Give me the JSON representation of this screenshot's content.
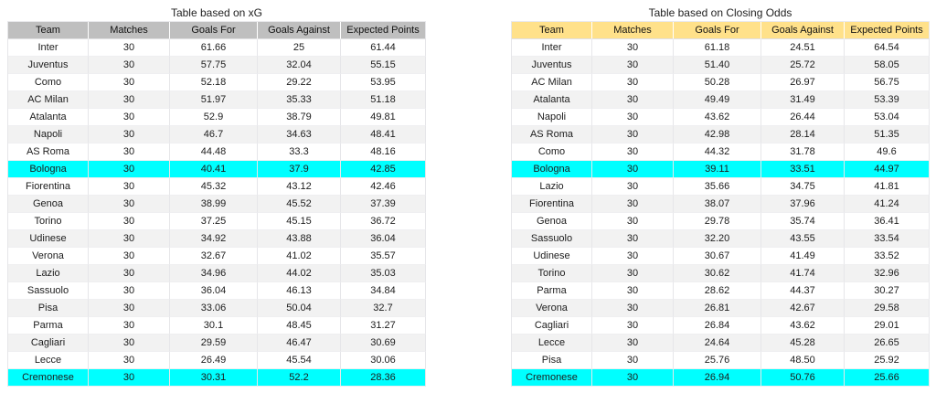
{
  "page": {
    "background": "#ffffff",
    "stripe_color": "#f2f2f2",
    "highlight_color": "#00ffff"
  },
  "tables": [
    {
      "id": "xg",
      "title": "Table based on xG",
      "header_bg": "#bfbfbf",
      "columns": [
        "Team",
        "Matches",
        "Goals For",
        "Goals Against",
        "Expected Points"
      ],
      "highlighted_teams": [
        "Bologna",
        "Cremonese"
      ],
      "rows": [
        [
          "Inter",
          "30",
          "61.66",
          "25",
          "61.44"
        ],
        [
          "Juventus",
          "30",
          "57.75",
          "32.04",
          "55.15"
        ],
        [
          "Como",
          "30",
          "52.18",
          "29.22",
          "53.95"
        ],
        [
          "AC Milan",
          "30",
          "51.97",
          "35.33",
          "51.18"
        ],
        [
          "Atalanta",
          "30",
          "52.9",
          "38.79",
          "49.81"
        ],
        [
          "Napoli",
          "30",
          "46.7",
          "34.63",
          "48.41"
        ],
        [
          "AS Roma",
          "30",
          "44.48",
          "33.3",
          "48.16"
        ],
        [
          "Bologna",
          "30",
          "40.41",
          "37.9",
          "42.85"
        ],
        [
          "Fiorentina",
          "30",
          "45.32",
          "43.12",
          "42.46"
        ],
        [
          "Genoa",
          "30",
          "38.99",
          "45.52",
          "37.39"
        ],
        [
          "Torino",
          "30",
          "37.25",
          "45.15",
          "36.72"
        ],
        [
          "Udinese",
          "30",
          "34.92",
          "43.88",
          "36.04"
        ],
        [
          "Verona",
          "30",
          "32.67",
          "41.02",
          "35.57"
        ],
        [
          "Lazio",
          "30",
          "34.96",
          "44.02",
          "35.03"
        ],
        [
          "Sassuolo",
          "30",
          "36.04",
          "46.13",
          "34.84"
        ],
        [
          "Pisa",
          "30",
          "33.06",
          "50.04",
          "32.7"
        ],
        [
          "Parma",
          "30",
          "30.1",
          "48.45",
          "31.27"
        ],
        [
          "Cagliari",
          "30",
          "29.59",
          "46.47",
          "30.69"
        ],
        [
          "Lecce",
          "30",
          "26.49",
          "45.54",
          "30.06"
        ],
        [
          "Cremonese",
          "30",
          "30.31",
          "52.2",
          "28.36"
        ]
      ]
    },
    {
      "id": "closing-odds",
      "title": "Table based on Closing Odds",
      "header_bg": "#ffe18a",
      "columns": [
        "Team",
        "Matches",
        "Goals For",
        "Goals Against",
        "Expected Points"
      ],
      "highlighted_teams": [
        "Bologna",
        "Cremonese"
      ],
      "rows": [
        [
          "Inter",
          "30",
          "61.18",
          "24.51",
          "64.54"
        ],
        [
          "Juventus",
          "30",
          "51.40",
          "25.72",
          "58.05"
        ],
        [
          "AC Milan",
          "30",
          "50.28",
          "26.97",
          "56.75"
        ],
        [
          "Atalanta",
          "30",
          "49.49",
          "31.49",
          "53.39"
        ],
        [
          "Napoli",
          "30",
          "43.62",
          "26.44",
          "53.04"
        ],
        [
          "AS Roma",
          "30",
          "42.98",
          "28.14",
          "51.35"
        ],
        [
          "Como",
          "30",
          "44.32",
          "31.78",
          "49.6"
        ],
        [
          "Bologna",
          "30",
          "39.11",
          "33.51",
          "44.97"
        ],
        [
          "Lazio",
          "30",
          "35.66",
          "34.75",
          "41.81"
        ],
        [
          "Fiorentina",
          "30",
          "38.07",
          "37.96",
          "41.24"
        ],
        [
          "Genoa",
          "30",
          "29.78",
          "35.74",
          "36.41"
        ],
        [
          "Sassuolo",
          "30",
          "32.20",
          "43.55",
          "33.54"
        ],
        [
          "Udinese",
          "30",
          "30.67",
          "41.49",
          "33.52"
        ],
        [
          "Torino",
          "30",
          "30.62",
          "41.74",
          "32.96"
        ],
        [
          "Parma",
          "30",
          "28.62",
          "44.37",
          "30.27"
        ],
        [
          "Verona",
          "30",
          "26.81",
          "42.67",
          "29.58"
        ],
        [
          "Cagliari",
          "30",
          "26.84",
          "43.62",
          "29.01"
        ],
        [
          "Lecce",
          "30",
          "24.64",
          "45.28",
          "26.65"
        ],
        [
          "Pisa",
          "30",
          "25.76",
          "48.50",
          "25.92"
        ],
        [
          "Cremonese",
          "30",
          "26.94",
          "50.76",
          "25.66"
        ]
      ]
    }
  ]
}
